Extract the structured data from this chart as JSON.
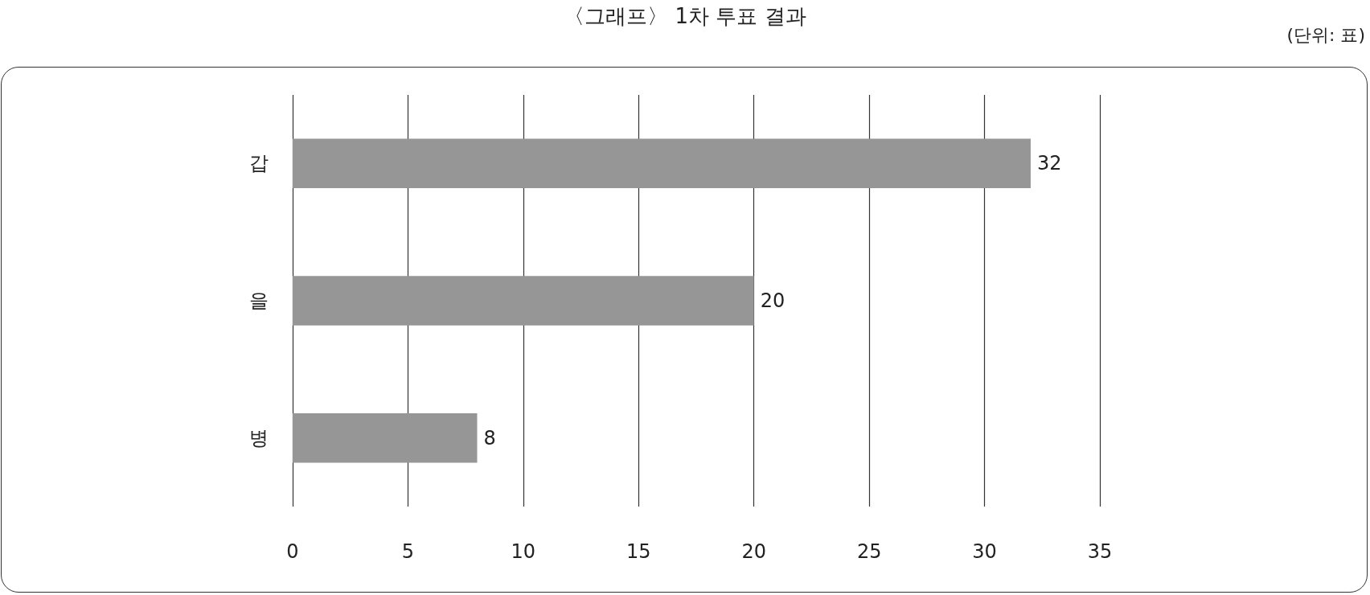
{
  "chart_data": {
    "type": "bar",
    "orientation": "horizontal",
    "title": "〈그래프〉 1차 투표 결과",
    "annotations": [
      "(단위: 표)"
    ],
    "categories": [
      "갑",
      "을",
      "병"
    ],
    "values": [
      32,
      20,
      8
    ],
    "color": "#969696",
    "xlim": [
      0,
      35
    ],
    "xticks": [
      0,
      5,
      10,
      15,
      20,
      25,
      30,
      35
    ],
    "grid": "x",
    "data_labels": true
  }
}
